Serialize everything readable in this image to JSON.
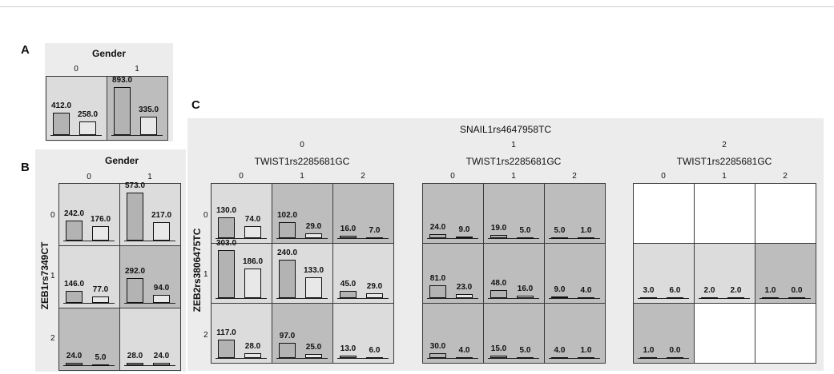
{
  "palette": {
    "light": "#dcdcdc",
    "dark": "#bdbdbd",
    "white": "#ffffff",
    "bar1": "#b3b3b3",
    "bar2": "#e8e8e8"
  },
  "chart_data": [
    {
      "label": "A",
      "type": "bar",
      "col_title": "Gender",
      "col_levels": [
        "0",
        "1"
      ],
      "row_levels": [
        ""
      ],
      "cells": [
        [
          {
            "values": [
              412.0,
              258.0
            ],
            "bg": "light"
          },
          {
            "values": [
              893.0,
              335.0
            ],
            "bg": "dark"
          }
        ]
      ],
      "ymax": 893.0
    },
    {
      "label": "B",
      "type": "bar",
      "col_title": "Gender",
      "col_levels": [
        "0",
        "1"
      ],
      "row_title": "ZEB1rs7349CT",
      "row_levels": [
        "0",
        "1",
        "2"
      ],
      "cells": [
        [
          {
            "values": [
              242.0,
              176.0
            ],
            "bg": "light"
          },
          {
            "values": [
              573.0,
              217.0
            ],
            "bg": "light"
          }
        ],
        [
          {
            "values": [
              146.0,
              77.0
            ],
            "bg": "light"
          },
          {
            "values": [
              292.0,
              94.0
            ],
            "bg": "dark"
          }
        ],
        [
          {
            "values": [
              24.0,
              5.0
            ],
            "bg": "dark"
          },
          {
            "values": [
              28.0,
              24.0
            ],
            "bg": "light"
          }
        ]
      ],
      "ymax": 573.0
    },
    {
      "label": "C",
      "type": "bar",
      "outer_title": "SNAIL1rs4647958TC",
      "row_title": "ZEB2rs3806475TC",
      "row_levels": [
        "0",
        "1",
        "2"
      ],
      "ymax": 303.0,
      "groups": [
        {
          "level": "0",
          "col_title": "TWIST1rs2285681GC",
          "col_levels": [
            "0",
            "1",
            "2"
          ],
          "cells": [
            [
              {
                "values": [
                  130.0,
                  74.0
                ],
                "bg": "light"
              },
              {
                "values": [
                  102.0,
                  29.0
                ],
                "bg": "dark"
              },
              {
                "values": [
                  16.0,
                  7.0
                ],
                "bg": "dark"
              }
            ],
            [
              {
                "values": [
                  303.0,
                  186.0
                ],
                "bg": "light"
              },
              {
                "values": [
                  240.0,
                  133.0
                ],
                "bg": "light"
              },
              {
                "values": [
                  45.0,
                  29.0
                ],
                "bg": "light"
              }
            ],
            [
              {
                "values": [
                  117.0,
                  28.0
                ],
                "bg": "light"
              },
              {
                "values": [
                  97.0,
                  25.0
                ],
                "bg": "dark"
              },
              {
                "values": [
                  13.0,
                  6.0
                ],
                "bg": "light"
              }
            ]
          ]
        },
        {
          "level": "1",
          "col_title": "TWIST1rs2285681GC",
          "col_levels": [
            "0",
            "1",
            "2"
          ],
          "cells": [
            [
              {
                "values": [
                  24.0,
                  9.0
                ],
                "bg": "dark"
              },
              {
                "values": [
                  19.0,
                  5.0
                ],
                "bg": "dark"
              },
              {
                "values": [
                  5.0,
                  1.0
                ],
                "bg": "dark"
              }
            ],
            [
              {
                "values": [
                  81.0,
                  23.0
                ],
                "bg": "dark"
              },
              {
                "values": [
                  48.0,
                  16.0
                ],
                "bg": "dark"
              },
              {
                "values": [
                  9.0,
                  4.0
                ],
                "bg": "dark"
              }
            ],
            [
              {
                "values": [
                  30.0,
                  4.0
                ],
                "bg": "dark"
              },
              {
                "values": [
                  15.0,
                  5.0
                ],
                "bg": "dark"
              },
              {
                "values": [
                  4.0,
                  1.0
                ],
                "bg": "dark"
              }
            ]
          ]
        },
        {
          "level": "2",
          "col_title": "TWIST1rs2285681GC",
          "col_levels": [
            "0",
            "1",
            "2"
          ],
          "cells": [
            [
              {
                "values": null,
                "bg": "white"
              },
              {
                "values": null,
                "bg": "white"
              },
              {
                "values": null,
                "bg": "white"
              }
            ],
            [
              {
                "values": [
                  3.0,
                  6.0
                ],
                "bg": "light"
              },
              {
                "values": [
                  2.0,
                  2.0
                ],
                "bg": "light"
              },
              {
                "values": [
                  1.0,
                  0.0
                ],
                "bg": "dark"
              }
            ],
            [
              {
                "values": [
                  1.0,
                  0.0
                ],
                "bg": "dark"
              },
              {
                "values": null,
                "bg": "white"
              },
              {
                "values": null,
                "bg": "white"
              }
            ]
          ]
        }
      ]
    }
  ]
}
